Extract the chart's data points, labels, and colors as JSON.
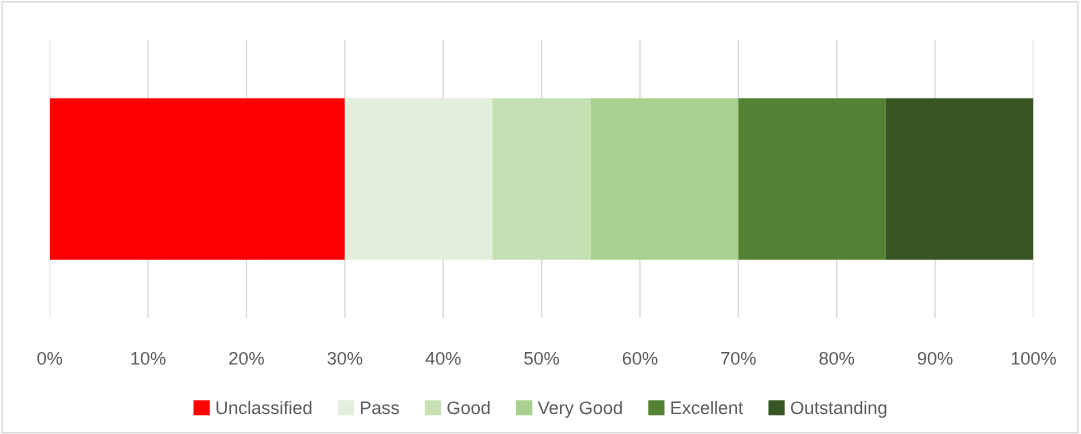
{
  "chart_data": {
    "type": "bar",
    "orientation": "horizontal",
    "stacked": true,
    "categories": [
      null
    ],
    "series": [
      {
        "name": "Unclassified",
        "color": "#ff0000",
        "values": [
          30
        ]
      },
      {
        "name": "Pass",
        "color": "#e2efda",
        "values": [
          15
        ]
      },
      {
        "name": "Good",
        "color": "#c6e0b4",
        "values": [
          10
        ]
      },
      {
        "name": "Very Good",
        "color": "#a9d08e",
        "values": [
          15
        ]
      },
      {
        "name": "Excellent",
        "color": "#548235",
        "values": [
          15
        ]
      },
      {
        "name": "Outstanding",
        "color": "#375623",
        "values": [
          15
        ]
      }
    ],
    "xlim": [
      0,
      100
    ],
    "xticks": [
      {
        "value": 0,
        "label": "0%"
      },
      {
        "value": 10,
        "label": "10%"
      },
      {
        "value": 20,
        "label": "20%"
      },
      {
        "value": 30,
        "label": "30%"
      },
      {
        "value": 40,
        "label": "40%"
      },
      {
        "value": 50,
        "label": "50%"
      },
      {
        "value": 60,
        "label": "60%"
      },
      {
        "value": 70,
        "label": "70%"
      },
      {
        "value": 80,
        "label": "80%"
      },
      {
        "value": 90,
        "label": "90%"
      },
      {
        "value": 100,
        "label": "100%"
      }
    ],
    "tick_labels": "x",
    "grid": "x",
    "legend": "bottom"
  }
}
